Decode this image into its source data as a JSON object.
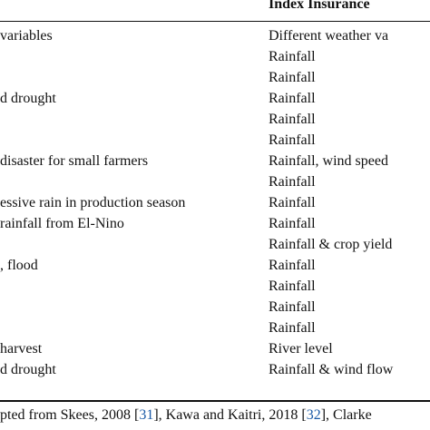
{
  "table": {
    "header_right": "Index Insurance",
    "rows": [
      {
        "left": "variables",
        "right": "Different weather va"
      },
      {
        "left": "",
        "right": "Rainfall"
      },
      {
        "left": "",
        "right": "Rainfall"
      },
      {
        "left": "d drought",
        "right": "Rainfall"
      },
      {
        "left": "",
        "right": "Rainfall"
      },
      {
        "left": "",
        "right": "Rainfall"
      },
      {
        "left": "disaster for small farmers",
        "right": "Rainfall, wind speed"
      },
      {
        "left": "",
        "right": "Rainfall"
      },
      {
        "left": "essive rain in production season",
        "right": "Rainfall"
      },
      {
        "left": "rainfall from El-Nino",
        "right": "Rainfall"
      },
      {
        "left": "",
        "right": "Rainfall & crop yield"
      },
      {
        "left": ", flood",
        "right": "Rainfall"
      },
      {
        "left": "",
        "right": "Rainfall"
      },
      {
        "left": "",
        "right": "Rainfall"
      },
      {
        "left": "",
        "right": "Rainfall"
      },
      {
        "left": "harvest",
        "right": "River level"
      },
      {
        "left": "d drought",
        "right": "Rainfall & wind flow"
      }
    ]
  },
  "footnote": {
    "pre": "pted from Skees, 2008 [",
    "ref1": "31",
    "mid": "], Kawa and Kaitri, 2018 [",
    "ref2": "32",
    "post": "], Clarke"
  }
}
